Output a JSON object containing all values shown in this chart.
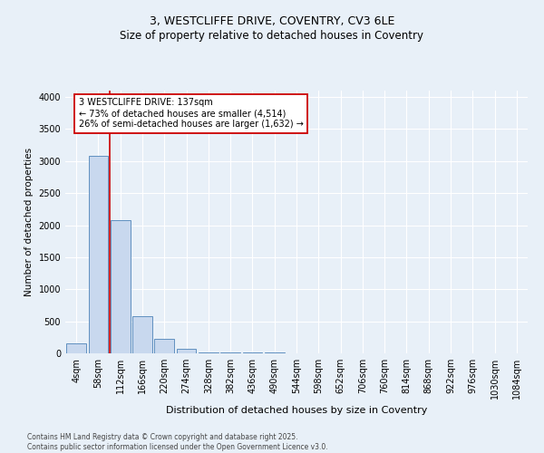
{
  "title1": "3, WESTCLIFFE DRIVE, COVENTRY, CV3 6LE",
  "title2": "Size of property relative to detached houses in Coventry",
  "xlabel": "Distribution of detached houses by size in Coventry",
  "ylabel": "Number of detached properties",
  "footnote": "Contains HM Land Registry data © Crown copyright and database right 2025.\nContains public sector information licensed under the Open Government Licence v3.0.",
  "bar_labels": [
    "4sqm",
    "58sqm",
    "112sqm",
    "166sqm",
    "220sqm",
    "274sqm",
    "328sqm",
    "382sqm",
    "436sqm",
    "490sqm",
    "544sqm",
    "598sqm",
    "652sqm",
    "706sqm",
    "760sqm",
    "814sqm",
    "868sqm",
    "922sqm",
    "976sqm",
    "1030sqm",
    "1084sqm"
  ],
  "bar_values": [
    150,
    3080,
    2080,
    580,
    230,
    70,
    20,
    20,
    20,
    20,
    0,
    0,
    0,
    0,
    0,
    0,
    0,
    0,
    0,
    0,
    0
  ],
  "bar_color": "#c8d8ee",
  "bar_edge_color": "#6090c0",
  "vline_color": "#cc0000",
  "vline_x_idx": 1.5,
  "annotation_text": "3 WESTCLIFFE DRIVE: 137sqm\n← 73% of detached houses are smaller (4,514)\n26% of semi-detached houses are larger (1,632) →",
  "ylim": [
    0,
    4100
  ],
  "yticks": [
    0,
    500,
    1000,
    1500,
    2000,
    2500,
    3000,
    3500,
    4000
  ],
  "bg_color": "#e8f0f8",
  "grid_color": "#ffffff",
  "box_edge_color": "#cc0000",
  "box_face_color": "#ffffff",
  "title1_fontsize": 9,
  "title2_fontsize": 8.5,
  "xlabel_fontsize": 8,
  "ylabel_fontsize": 7.5,
  "tick_fontsize": 7,
  "annot_fontsize": 7
}
